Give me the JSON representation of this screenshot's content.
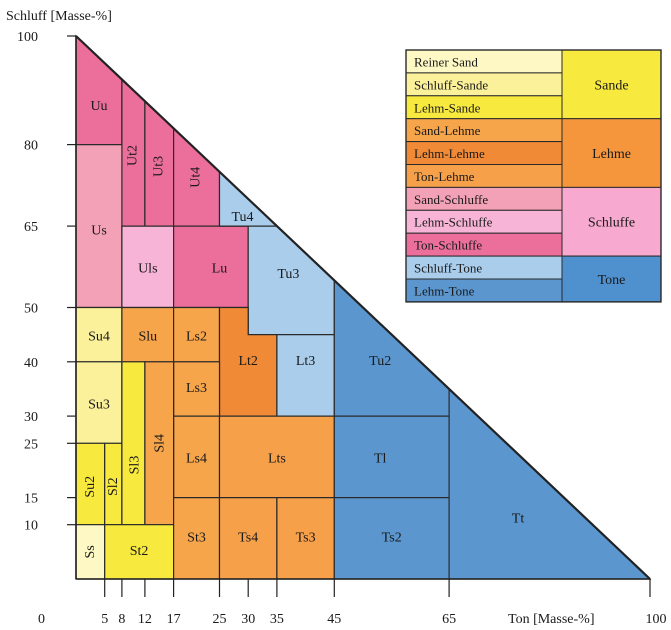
{
  "axes": {
    "y_title": "Schluff  [Masse-%]",
    "x_title": "Ton [Masse-%]",
    "origin": "0",
    "y_ticks": [
      "100",
      "80",
      "65",
      "50",
      "40",
      "30",
      "25",
      "15",
      "10"
    ],
    "x_ticks": [
      "5",
      "8",
      "12",
      "17",
      "25",
      "30",
      "35",
      "45",
      "65",
      "100"
    ]
  },
  "regions": [
    {
      "label": "Uu",
      "group": "Ton-Schluffe"
    },
    {
      "label": "Ut2",
      "group": "Ton-Schluffe"
    },
    {
      "label": "Ut3",
      "group": "Ton-Schluffe"
    },
    {
      "label": "Ut4",
      "group": "Ton-Schluffe"
    },
    {
      "label": "Us",
      "group": "Sand-Schluffe"
    },
    {
      "label": "Uls",
      "group": "Lehm-Schluffe"
    },
    {
      "label": "Lu",
      "group": "Ton-Schluffe"
    },
    {
      "label": "Tu4",
      "group": "Schluff-Tone"
    },
    {
      "label": "Tu3",
      "group": "Schluff-Tone"
    },
    {
      "label": "Su4",
      "group": "Schluff-Sande"
    },
    {
      "label": "Slu",
      "group": "Sand-Lehme"
    },
    {
      "label": "Ls2",
      "group": "Sand-Lehme"
    },
    {
      "label": "Lt2",
      "group": "Lehm-Lehme"
    },
    {
      "label": "Lt3",
      "group": "Schluff-Tone"
    },
    {
      "label": "Tu2",
      "group": "Lehm-Tone"
    },
    {
      "label": "Su3",
      "group": "Schluff-Sande"
    },
    {
      "label": "Ls3",
      "group": "Sand-Lehme"
    },
    {
      "label": "Ls4",
      "group": "Sand-Lehme"
    },
    {
      "label": "Lts",
      "group": "Ton-Lehme"
    },
    {
      "label": "Tl",
      "group": "Lehm-Tone"
    },
    {
      "label": "Su2",
      "group": "Lehm-Sande"
    },
    {
      "label": "Sl2",
      "group": "Lehm-Sande"
    },
    {
      "label": "Sl3",
      "group": "Lehm-Sande"
    },
    {
      "label": "Sl4",
      "group": "Sand-Lehme"
    },
    {
      "label": "Ss",
      "group": "Reiner Sand"
    },
    {
      "label": "St2",
      "group": "Lehm-Sande"
    },
    {
      "label": "St3",
      "group": "Sand-Lehme"
    },
    {
      "label": "Ts4",
      "group": "Ton-Lehme"
    },
    {
      "label": "Ts3",
      "group": "Ton-Lehme"
    },
    {
      "label": "Ts2",
      "group": "Lehm-Tone"
    },
    {
      "label": "Tt",
      "group": "Lehm-Tone"
    }
  ],
  "legend": {
    "items": [
      {
        "label": "Reiner Sand",
        "color": "#fdf8c4"
      },
      {
        "label": "Schluff-Sande",
        "color": "#fbf19a"
      },
      {
        "label": "Lehm-Sande",
        "color": "#f7e93e"
      },
      {
        "label": "Sand-Lehme",
        "color": "#f7a54a"
      },
      {
        "label": "Lehm-Lehme",
        "color": "#f08a36"
      },
      {
        "label": "Ton-Lehme",
        "color": "#f6a04a"
      },
      {
        "label": "Sand-Schluffe",
        "color": "#f3a1b6"
      },
      {
        "label": "Lehm-Schluffe",
        "color": "#f7b4d6"
      },
      {
        "label": "Ton-Schluffe",
        "color": "#ec6f9b"
      },
      {
        "label": "Schluff-Tone",
        "color": "#a9cdeb"
      },
      {
        "label": "Lehm-Tone",
        "color": "#5b96cf"
      }
    ],
    "groups": [
      {
        "label": "Sande",
        "color": "#f7e93e"
      },
      {
        "label": "Lehme",
        "color": "#f5963c"
      },
      {
        "label": "Schluffe",
        "color": "#f7a9cf"
      },
      {
        "label": "Tone",
        "color": "#4f90cf"
      }
    ]
  }
}
